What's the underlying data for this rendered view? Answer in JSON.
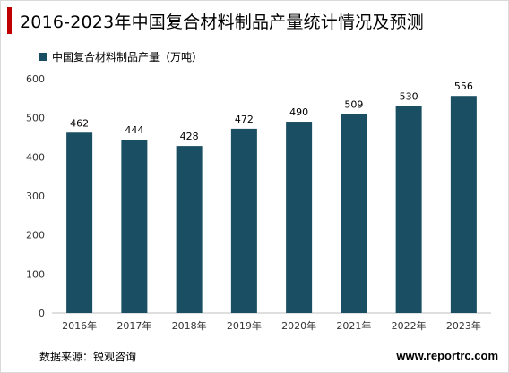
{
  "header": {
    "title": "2016-2023年中国复合材料制品产量统计情况及预测"
  },
  "footer": {
    "source": "数据来源：锐观咨询",
    "website": "www.reportrc.com"
  },
  "colors": {
    "bar": "#1a4f63",
    "accent": "#c00000"
  },
  "chart_data": {
    "type": "bar",
    "title": "2016-2023年中国复合材料制品产量统计情况及预测",
    "categories": [
      "2016年",
      "2017年",
      "2018年",
      "2019年",
      "2020年",
      "2021年",
      "2022年",
      "2023年"
    ],
    "series": [
      {
        "name": "中国复合材料制品产量（万吨）",
        "values": [
          462,
          444,
          428,
          472,
          490,
          509,
          530,
          556
        ]
      }
    ],
    "ylim": [
      0,
      600
    ],
    "yticks": [
      0,
      100,
      200,
      300,
      400,
      500,
      600
    ],
    "legend": "top-left",
    "grid": false,
    "data_labels": true
  }
}
